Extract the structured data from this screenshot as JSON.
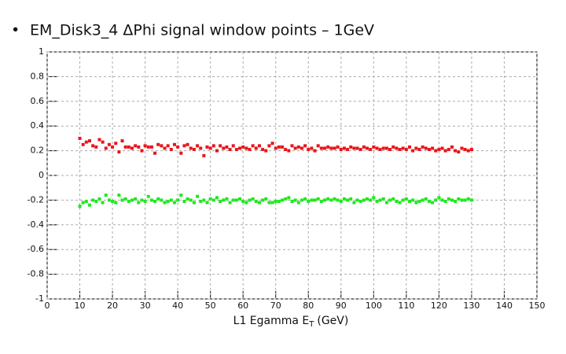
{
  "chart_data": {
    "type": "scatter",
    "title": "EM_Disk3_4 ΔPhi signal window points – 1GeV",
    "x_label": {
      "main": "L1 Egamma E",
      "sub": "T",
      "unit": "(GeV)"
    },
    "xlim": [
      0,
      150
    ],
    "xticks": [
      0,
      10,
      20,
      30,
      40,
      50,
      60,
      70,
      80,
      90,
      100,
      110,
      120,
      130,
      140,
      150
    ],
    "ylim": [
      -1,
      1
    ],
    "yticks": [
      -1,
      -0.8,
      -0.6,
      -0.4,
      -0.2,
      0,
      0.2,
      0.4,
      0.6,
      0.8,
      1
    ],
    "grid": true,
    "x": [
      10,
      11,
      12,
      13,
      14,
      15,
      16,
      17,
      18,
      19,
      20,
      21,
      22,
      23,
      24,
      25,
      26,
      27,
      28,
      29,
      30,
      31,
      32,
      33,
      34,
      35,
      36,
      37,
      38,
      39,
      40,
      41,
      42,
      43,
      44,
      45,
      46,
      47,
      48,
      49,
      50,
      51,
      52,
      53,
      54,
      55,
      56,
      57,
      58,
      59,
      60,
      61,
      62,
      63,
      64,
      65,
      66,
      67,
      68,
      69,
      70,
      71,
      72,
      73,
      74,
      75,
      76,
      77,
      78,
      79,
      80,
      81,
      82,
      83,
      84,
      85,
      86,
      87,
      88,
      89,
      90,
      91,
      92,
      93,
      94,
      95,
      96,
      97,
      98,
      99,
      100,
      101,
      102,
      103,
      104,
      105,
      106,
      107,
      108,
      109,
      110,
      111,
      112,
      113,
      114,
      115,
      116,
      117,
      118,
      119,
      120,
      121,
      122,
      123,
      124,
      125,
      126,
      127,
      128,
      129,
      130
    ],
    "series": [
      {
        "color": "#e8151b",
        "values": [
          0.3,
          0.25,
          0.27,
          0.28,
          0.24,
          0.23,
          0.29,
          0.27,
          0.22,
          0.25,
          0.23,
          0.26,
          0.19,
          0.28,
          0.23,
          0.23,
          0.22,
          0.24,
          0.23,
          0.2,
          0.24,
          0.23,
          0.23,
          0.18,
          0.25,
          0.24,
          0.22,
          0.24,
          0.21,
          0.25,
          0.23,
          0.18,
          0.24,
          0.25,
          0.22,
          0.21,
          0.24,
          0.22,
          0.16,
          0.23,
          0.22,
          0.24,
          0.2,
          0.24,
          0.22,
          0.23,
          0.21,
          0.24,
          0.21,
          0.22,
          0.23,
          0.22,
          0.21,
          0.24,
          0.22,
          0.24,
          0.21,
          0.2,
          0.24,
          0.26,
          0.22,
          0.23,
          0.23,
          0.21,
          0.2,
          0.24,
          0.22,
          0.23,
          0.22,
          0.24,
          0.21,
          0.22,
          0.2,
          0.24,
          0.22,
          0.22,
          0.23,
          0.22,
          0.22,
          0.23,
          0.21,
          0.22,
          0.21,
          0.23,
          0.22,
          0.22,
          0.21,
          0.23,
          0.22,
          0.21,
          0.23,
          0.22,
          0.21,
          0.22,
          0.22,
          0.21,
          0.23,
          0.22,
          0.21,
          0.22,
          0.21,
          0.23,
          0.2,
          0.22,
          0.21,
          0.23,
          0.22,
          0.21,
          0.22,
          0.2,
          0.21,
          0.22,
          0.2,
          0.21,
          0.23,
          0.2,
          0.19,
          0.22,
          0.21,
          0.2,
          0.21
        ]
      },
      {
        "color": "#1fe81f",
        "values": [
          -0.25,
          -0.22,
          -0.21,
          -0.24,
          -0.2,
          -0.21,
          -0.19,
          -0.22,
          -0.16,
          -0.2,
          -0.21,
          -0.22,
          -0.16,
          -0.2,
          -0.19,
          -0.21,
          -0.2,
          -0.19,
          -0.22,
          -0.2,
          -0.21,
          -0.17,
          -0.2,
          -0.21,
          -0.19,
          -0.2,
          -0.22,
          -0.21,
          -0.2,
          -0.22,
          -0.2,
          -0.16,
          -0.21,
          -0.19,
          -0.2,
          -0.22,
          -0.17,
          -0.21,
          -0.2,
          -0.22,
          -0.19,
          -0.2,
          -0.18,
          -0.21,
          -0.2,
          -0.19,
          -0.22,
          -0.2,
          -0.2,
          -0.19,
          -0.21,
          -0.22,
          -0.2,
          -0.19,
          -0.21,
          -0.22,
          -0.2,
          -0.19,
          -0.22,
          -0.22,
          -0.21,
          -0.21,
          -0.2,
          -0.19,
          -0.18,
          -0.21,
          -0.2,
          -0.22,
          -0.2,
          -0.19,
          -0.21,
          -0.2,
          -0.2,
          -0.19,
          -0.21,
          -0.2,
          -0.19,
          -0.2,
          -0.19,
          -0.2,
          -0.21,
          -0.19,
          -0.2,
          -0.19,
          -0.22,
          -0.2,
          -0.21,
          -0.2,
          -0.19,
          -0.2,
          -0.18,
          -0.21,
          -0.2,
          -0.19,
          -0.22,
          -0.2,
          -0.19,
          -0.21,
          -0.22,
          -0.2,
          -0.19,
          -0.21,
          -0.2,
          -0.22,
          -0.21,
          -0.2,
          -0.19,
          -0.21,
          -0.22,
          -0.2,
          -0.18,
          -0.2,
          -0.21,
          -0.19,
          -0.2,
          -0.21,
          -0.19,
          -0.2,
          -0.2,
          -0.19,
          -0.2
        ]
      }
    ]
  }
}
